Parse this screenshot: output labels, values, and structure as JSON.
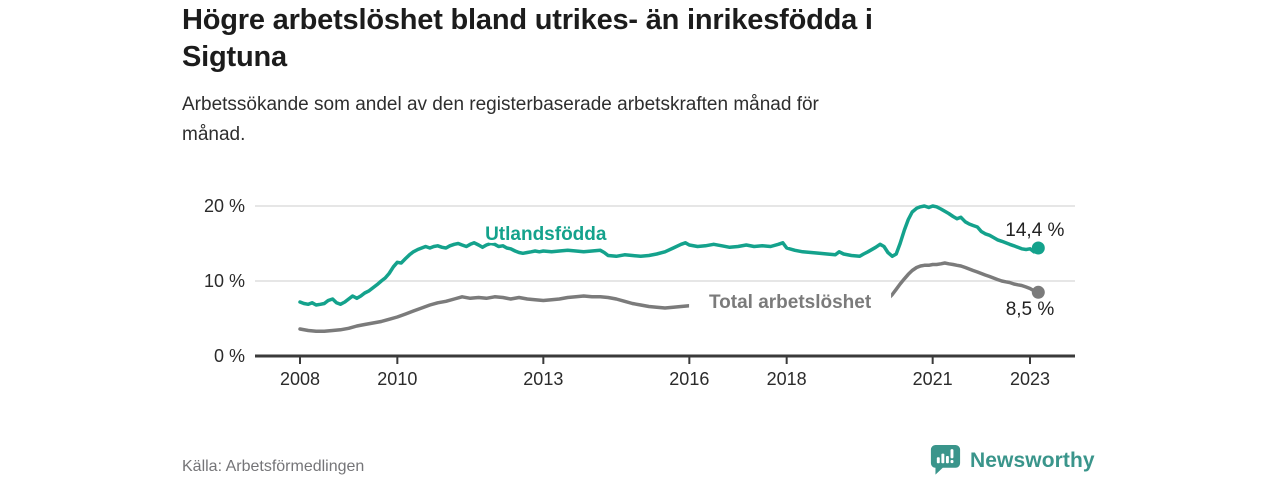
{
  "title": "Högre arbetslöshet bland utrikes- än inrikesfödda i\nSigtuna",
  "subtitle": "Arbetssökande som andel av den registerbaserade arbetskraften månad för\nmånad.",
  "source": "Källa: Arbetsförmedlingen",
  "brand": {
    "name": "Newsworthy",
    "color": "#3a958b",
    "icon": "bar-chart-speech-bubble-icon"
  },
  "colors": {
    "utlandsfodda": "#14a28c",
    "total": "#7b7b7b",
    "grid": "#dedede",
    "axis": "#3a3a3a",
    "tick_label": "#2b2b2b",
    "value_label": "#222222",
    "background": "#ffffff"
  },
  "chart_data": {
    "type": "line",
    "title": "Högre arbetslöshet bland utrikes- än inrikesfödda i Sigtuna",
    "subtitle": "Arbetssökande som andel av den registerbaserade arbetskraften månad för månad.",
    "xlabel": "",
    "ylabel": "",
    "x_unit": "decimal-year",
    "xlim": [
      2007.6,
      2024.0
    ],
    "ylim": [
      0,
      21
    ],
    "grid": "horizontal",
    "legend": "inline-line-labels",
    "y_ticks": [
      {
        "value": 0,
        "label": "0 %"
      },
      {
        "value": 10,
        "label": "10 %"
      },
      {
        "value": 20,
        "label": "20 %"
      }
    ],
    "x_ticks": [
      {
        "value": 2008,
        "label": "2008"
      },
      {
        "value": 2010,
        "label": "2010"
      },
      {
        "value": 2013,
        "label": "2013"
      },
      {
        "value": 2016,
        "label": "2016"
      },
      {
        "value": 2018,
        "label": "2018"
      },
      {
        "value": 2021,
        "label": "2021"
      },
      {
        "value": 2023,
        "label": "2023"
      }
    ],
    "series": [
      {
        "id": "utlandsfodda",
        "name": "Utlandsfödda",
        "color": "#14a28c",
        "label_pos": {
          "x": 2013.05,
          "y": 16.3
        },
        "label_mask": null,
        "value_label": {
          "text": "14,4 %",
          "x": 2023.1,
          "y": 16.8
        },
        "end_value": 14.4,
        "points": [
          [
            2008.0,
            7.2
          ],
          [
            2008.08,
            7.0
          ],
          [
            2008.17,
            6.9
          ],
          [
            2008.25,
            7.1
          ],
          [
            2008.33,
            6.8
          ],
          [
            2008.42,
            6.9
          ],
          [
            2008.5,
            7.0
          ],
          [
            2008.58,
            7.4
          ],
          [
            2008.67,
            7.6
          ],
          [
            2008.75,
            7.1
          ],
          [
            2008.83,
            6.9
          ],
          [
            2008.92,
            7.2
          ],
          [
            2009.0,
            7.6
          ],
          [
            2009.08,
            8.0
          ],
          [
            2009.17,
            7.7
          ],
          [
            2009.25,
            8.0
          ],
          [
            2009.33,
            8.4
          ],
          [
            2009.42,
            8.7
          ],
          [
            2009.5,
            9.1
          ],
          [
            2009.58,
            9.5
          ],
          [
            2009.67,
            10.0
          ],
          [
            2009.75,
            10.4
          ],
          [
            2009.83,
            11.0
          ],
          [
            2009.92,
            11.9
          ],
          [
            2010.0,
            12.5
          ],
          [
            2010.08,
            12.4
          ],
          [
            2010.17,
            13.0
          ],
          [
            2010.25,
            13.5
          ],
          [
            2010.33,
            13.9
          ],
          [
            2010.42,
            14.2
          ],
          [
            2010.5,
            14.4
          ],
          [
            2010.58,
            14.6
          ],
          [
            2010.67,
            14.4
          ],
          [
            2010.75,
            14.6
          ],
          [
            2010.83,
            14.7
          ],
          [
            2010.92,
            14.5
          ],
          [
            2011.0,
            14.4
          ],
          [
            2011.08,
            14.7
          ],
          [
            2011.17,
            14.9
          ],
          [
            2011.25,
            15.0
          ],
          [
            2011.33,
            14.8
          ],
          [
            2011.42,
            14.6
          ],
          [
            2011.5,
            14.9
          ],
          [
            2011.58,
            15.1
          ],
          [
            2011.67,
            14.8
          ],
          [
            2011.75,
            14.5
          ],
          [
            2011.83,
            14.8
          ],
          [
            2011.92,
            15.0
          ],
          [
            2012.0,
            14.9
          ],
          [
            2012.08,
            14.6
          ],
          [
            2012.17,
            14.7
          ],
          [
            2012.25,
            14.4
          ],
          [
            2012.33,
            14.3
          ],
          [
            2012.42,
            14.0
          ],
          [
            2012.5,
            13.8
          ],
          [
            2012.58,
            13.7
          ],
          [
            2012.67,
            13.8
          ],
          [
            2012.75,
            13.9
          ],
          [
            2012.83,
            14.0
          ],
          [
            2012.92,
            13.9
          ],
          [
            2013.0,
            14.0
          ],
          [
            2013.17,
            13.9
          ],
          [
            2013.33,
            14.0
          ],
          [
            2013.5,
            14.1
          ],
          [
            2013.67,
            14.0
          ],
          [
            2013.83,
            13.9
          ],
          [
            2014.0,
            14.0
          ],
          [
            2014.17,
            14.1
          ],
          [
            2014.25,
            13.8
          ],
          [
            2014.33,
            13.4
          ],
          [
            2014.5,
            13.3
          ],
          [
            2014.67,
            13.5
          ],
          [
            2014.83,
            13.4
          ],
          [
            2015.0,
            13.3
          ],
          [
            2015.17,
            13.4
          ],
          [
            2015.33,
            13.6
          ],
          [
            2015.5,
            13.9
          ],
          [
            2015.67,
            14.4
          ],
          [
            2015.83,
            14.9
          ],
          [
            2015.92,
            15.1
          ],
          [
            2016.0,
            14.8
          ],
          [
            2016.17,
            14.6
          ],
          [
            2016.33,
            14.7
          ],
          [
            2016.5,
            14.9
          ],
          [
            2016.67,
            14.7
          ],
          [
            2016.83,
            14.5
          ],
          [
            2017.0,
            14.6
          ],
          [
            2017.17,
            14.8
          ],
          [
            2017.33,
            14.6
          ],
          [
            2017.5,
            14.7
          ],
          [
            2017.67,
            14.6
          ],
          [
            2017.83,
            14.9
          ],
          [
            2017.92,
            15.1
          ],
          [
            2018.0,
            14.4
          ],
          [
            2018.17,
            14.1
          ],
          [
            2018.33,
            13.9
          ],
          [
            2018.5,
            13.8
          ],
          [
            2018.67,
            13.7
          ],
          [
            2018.83,
            13.6
          ],
          [
            2019.0,
            13.5
          ],
          [
            2019.08,
            13.9
          ],
          [
            2019.17,
            13.6
          ],
          [
            2019.33,
            13.4
          ],
          [
            2019.5,
            13.3
          ],
          [
            2019.58,
            13.6
          ],
          [
            2019.67,
            13.9
          ],
          [
            2019.83,
            14.5
          ],
          [
            2019.92,
            14.9
          ],
          [
            2020.0,
            14.6
          ],
          [
            2020.08,
            13.8
          ],
          [
            2020.17,
            13.3
          ],
          [
            2020.25,
            13.6
          ],
          [
            2020.33,
            15.0
          ],
          [
            2020.42,
            16.8
          ],
          [
            2020.5,
            18.2
          ],
          [
            2020.58,
            19.2
          ],
          [
            2020.67,
            19.7
          ],
          [
            2020.75,
            19.9
          ],
          [
            2020.83,
            20.0
          ],
          [
            2020.92,
            19.8
          ],
          [
            2021.0,
            20.0
          ],
          [
            2021.08,
            19.9
          ],
          [
            2021.17,
            19.6
          ],
          [
            2021.25,
            19.3
          ],
          [
            2021.33,
            19.0
          ],
          [
            2021.42,
            18.6
          ],
          [
            2021.5,
            18.3
          ],
          [
            2021.58,
            18.5
          ],
          [
            2021.67,
            17.9
          ],
          [
            2021.75,
            17.6
          ],
          [
            2021.83,
            17.4
          ],
          [
            2021.92,
            17.2
          ],
          [
            2022.0,
            16.6
          ],
          [
            2022.08,
            16.3
          ],
          [
            2022.17,
            16.1
          ],
          [
            2022.25,
            15.8
          ],
          [
            2022.33,
            15.5
          ],
          [
            2022.42,
            15.3
          ],
          [
            2022.5,
            15.1
          ],
          [
            2022.58,
            14.9
          ],
          [
            2022.67,
            14.7
          ],
          [
            2022.75,
            14.5
          ],
          [
            2022.83,
            14.3
          ],
          [
            2022.92,
            14.2
          ],
          [
            2023.0,
            14.3
          ],
          [
            2023.08,
            13.9
          ],
          [
            2023.17,
            14.4
          ]
        ]
      },
      {
        "id": "total",
        "name": "Total arbetslöshet",
        "color": "#7b7b7b",
        "label_pos": {
          "x": 2018.07,
          "y": 7.2
        },
        "label_mask": [
          202,
          25
        ],
        "value_label": {
          "text": "8,5 %",
          "x": 2023.0,
          "y": 6.3
        },
        "end_value": 8.5,
        "points": [
          [
            2008.0,
            3.6
          ],
          [
            2008.17,
            3.4
          ],
          [
            2008.33,
            3.3
          ],
          [
            2008.5,
            3.3
          ],
          [
            2008.67,
            3.4
          ],
          [
            2008.83,
            3.5
          ],
          [
            2009.0,
            3.7
          ],
          [
            2009.17,
            4.0
          ],
          [
            2009.33,
            4.2
          ],
          [
            2009.5,
            4.4
          ],
          [
            2009.67,
            4.6
          ],
          [
            2009.83,
            4.9
          ],
          [
            2010.0,
            5.2
          ],
          [
            2010.17,
            5.6
          ],
          [
            2010.33,
            6.0
          ],
          [
            2010.5,
            6.4
          ],
          [
            2010.67,
            6.8
          ],
          [
            2010.83,
            7.1
          ],
          [
            2011.0,
            7.3
          ],
          [
            2011.17,
            7.6
          ],
          [
            2011.33,
            7.9
          ],
          [
            2011.5,
            7.7
          ],
          [
            2011.67,
            7.8
          ],
          [
            2011.83,
            7.7
          ],
          [
            2012.0,
            7.9
          ],
          [
            2012.17,
            7.8
          ],
          [
            2012.33,
            7.6
          ],
          [
            2012.5,
            7.8
          ],
          [
            2012.67,
            7.6
          ],
          [
            2012.83,
            7.5
          ],
          [
            2013.0,
            7.4
          ],
          [
            2013.17,
            7.5
          ],
          [
            2013.33,
            7.6
          ],
          [
            2013.5,
            7.8
          ],
          [
            2013.67,
            7.9
          ],
          [
            2013.83,
            8.0
          ],
          [
            2014.0,
            7.9
          ],
          [
            2014.17,
            7.9
          ],
          [
            2014.33,
            7.8
          ],
          [
            2014.5,
            7.6
          ],
          [
            2014.67,
            7.3
          ],
          [
            2014.83,
            7.0
          ],
          [
            2015.0,
            6.8
          ],
          [
            2015.17,
            6.6
          ],
          [
            2015.33,
            6.5
          ],
          [
            2015.5,
            6.4
          ],
          [
            2015.67,
            6.5
          ],
          [
            2015.83,
            6.6
          ],
          [
            2016.0,
            6.7
          ],
          [
            2016.17,
            6.8
          ],
          [
            2016.33,
            6.9
          ],
          [
            2016.5,
            7.0
          ],
          [
            2016.67,
            7.0
          ],
          [
            2016.83,
            6.9
          ],
          [
            2017.0,
            6.9
          ],
          [
            2017.25,
            6.8
          ],
          [
            2017.5,
            6.8
          ],
          [
            2017.75,
            6.9
          ],
          [
            2018.0,
            6.9
          ],
          [
            2018.25,
            6.8
          ],
          [
            2018.5,
            6.7
          ],
          [
            2018.75,
            6.7
          ],
          [
            2019.0,
            6.7
          ],
          [
            2019.25,
            6.8
          ],
          [
            2019.5,
            6.9
          ],
          [
            2019.75,
            7.1
          ],
          [
            2020.0,
            7.3
          ],
          [
            2020.08,
            7.6
          ],
          [
            2020.17,
            8.2
          ],
          [
            2020.25,
            8.9
          ],
          [
            2020.33,
            9.6
          ],
          [
            2020.42,
            10.3
          ],
          [
            2020.5,
            10.9
          ],
          [
            2020.58,
            11.4
          ],
          [
            2020.67,
            11.8
          ],
          [
            2020.75,
            12.0
          ],
          [
            2020.83,
            12.1
          ],
          [
            2020.92,
            12.1
          ],
          [
            2021.0,
            12.2
          ],
          [
            2021.08,
            12.2
          ],
          [
            2021.17,
            12.3
          ],
          [
            2021.25,
            12.4
          ],
          [
            2021.33,
            12.3
          ],
          [
            2021.42,
            12.2
          ],
          [
            2021.5,
            12.1
          ],
          [
            2021.58,
            12.0
          ],
          [
            2021.67,
            11.8
          ],
          [
            2021.75,
            11.6
          ],
          [
            2021.83,
            11.4
          ],
          [
            2021.92,
            11.2
          ],
          [
            2022.0,
            11.0
          ],
          [
            2022.08,
            10.8
          ],
          [
            2022.17,
            10.6
          ],
          [
            2022.25,
            10.4
          ],
          [
            2022.33,
            10.2
          ],
          [
            2022.42,
            10.0
          ],
          [
            2022.5,
            9.9
          ],
          [
            2022.58,
            9.8
          ],
          [
            2022.67,
            9.6
          ],
          [
            2022.75,
            9.5
          ],
          [
            2022.83,
            9.4
          ],
          [
            2022.92,
            9.2
          ],
          [
            2023.0,
            9.0
          ],
          [
            2023.08,
            8.7
          ],
          [
            2023.17,
            8.5
          ]
        ]
      }
    ]
  }
}
